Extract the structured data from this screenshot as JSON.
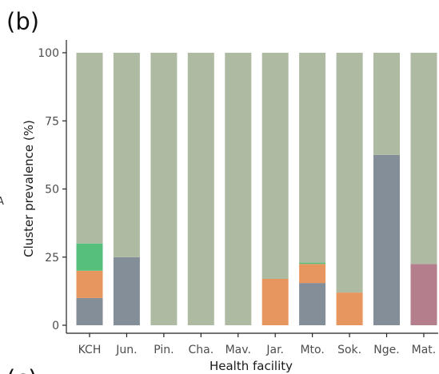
{
  "panel_label": "(b)",
  "next_panel_label": "(c)",
  "edge_fragment": "A",
  "chart_data": {
    "type": "bar",
    "stacked": true,
    "xlabel": "Health facility",
    "ylabel": "Cluster prevalence (%)",
    "ylim": [
      0,
      100
    ],
    "yticks": [
      0,
      25,
      50,
      75,
      100
    ],
    "grid": false,
    "legend": "none",
    "categories": [
      "KCH",
      "Jun.",
      "Pin.",
      "Cha.",
      "Mav.",
      "Jar.",
      "Mto.",
      "Sok.",
      "Nge.",
      "Mat."
    ],
    "series": [
      {
        "color": "#848e99",
        "values": [
          10,
          25,
          0,
          0,
          0,
          0,
          15.5,
          0,
          62.5,
          0
        ]
      },
      {
        "color": "#b57e8d",
        "values": [
          0,
          0,
          0,
          0,
          0,
          0,
          0,
          0,
          0,
          22.5
        ]
      },
      {
        "color": "#e8965f",
        "values": [
          10,
          0,
          0,
          0,
          0,
          17,
          7,
          12,
          0,
          0
        ]
      },
      {
        "color": "#56bf7c",
        "values": [
          10,
          0,
          0,
          0,
          0,
          0,
          0.5,
          0,
          0,
          0
        ]
      },
      {
        "color": "#aebba2",
        "values": [
          70,
          75,
          100,
          100,
          100,
          83,
          77,
          88,
          37.5,
          77.5
        ]
      }
    ]
  }
}
